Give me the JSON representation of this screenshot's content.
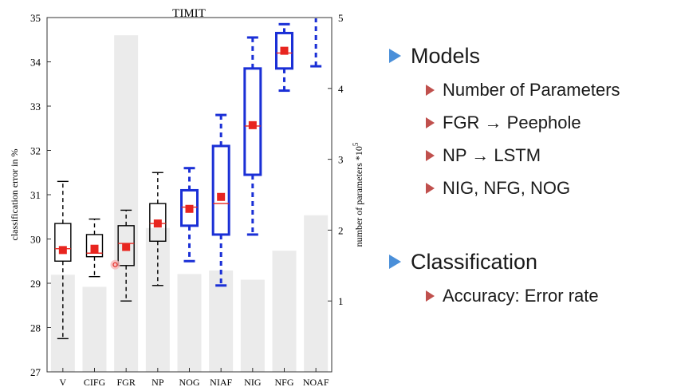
{
  "chart_data": {
    "type": "box",
    "title": "TIMIT",
    "ylabel": "classification error in %",
    "y2label": "number of parameters *10^5",
    "ylim": [
      27,
      35
    ],
    "y2lim": [
      0,
      5
    ],
    "yticks": [
      27,
      28,
      29,
      30,
      31,
      32,
      33,
      34,
      35
    ],
    "y2ticks": [
      1,
      2,
      3,
      4,
      5
    ],
    "categories": [
      "V",
      "CIFG",
      "FGR",
      "NP",
      "NOG",
      "NIAF",
      "NIG",
      "NFG",
      "NOAF"
    ],
    "parameters": [
      1.37,
      1.2,
      4.75,
      2.03,
      1.38,
      1.43,
      1.3,
      1.71,
      2.21
    ],
    "boxes": [
      {
        "min": 27.75,
        "q1": 29.5,
        "median": 29.78,
        "q3": 30.35,
        "max": 31.3,
        "mean": 29.75,
        "significant": false
      },
      {
        "min": 29.15,
        "q1": 29.6,
        "median": 29.68,
        "q3": 30.1,
        "max": 30.45,
        "mean": 29.78,
        "significant": false
      },
      {
        "min": 28.6,
        "q1": 29.4,
        "median": 29.9,
        "q3": 30.3,
        "max": 30.65,
        "mean": 29.82,
        "significant": false
      },
      {
        "min": 28.95,
        "q1": 29.95,
        "median": 30.35,
        "q3": 30.8,
        "max": 31.5,
        "mean": 30.35,
        "significant": false
      },
      {
        "min": 29.5,
        "q1": 30.3,
        "median": 30.72,
        "q3": 31.1,
        "max": 31.6,
        "mean": 30.68,
        "significant": true
      },
      {
        "min": 28.95,
        "q1": 30.1,
        "median": 30.8,
        "q3": 32.1,
        "max": 32.8,
        "mean": 30.95,
        "significant": true
      },
      {
        "min": 30.1,
        "q1": 31.45,
        "median": 32.55,
        "q3": 33.85,
        "max": 34.55,
        "mean": 32.57,
        "significant": true
      },
      {
        "min": 33.35,
        "q1": 33.85,
        "median": 34.2,
        "q3": 34.65,
        "max": 34.85,
        "mean": 34.25,
        "significant": true
      },
      {
        "min": 33.9,
        "q1": null,
        "median": null,
        "q3": null,
        "max": 35.0,
        "mean": null,
        "significant": true
      }
    ],
    "colors": {
      "normal": "#000000",
      "significant": "#1a2fd6",
      "mean": "#e8251f",
      "median": "#e8251f",
      "bar": "#ebebeb"
    },
    "outlier": {
      "category": "CIFG",
      "value": 29.42
    }
  },
  "bullets": {
    "models": {
      "title": "Models",
      "items": [
        "Number of Parameters",
        "FGR → Peephole",
        "NP → LSTM",
        "NIG, NFG, NOG"
      ]
    },
    "classification": {
      "title": "Classification",
      "items": [
        "Accuracy: Error rate"
      ]
    }
  }
}
